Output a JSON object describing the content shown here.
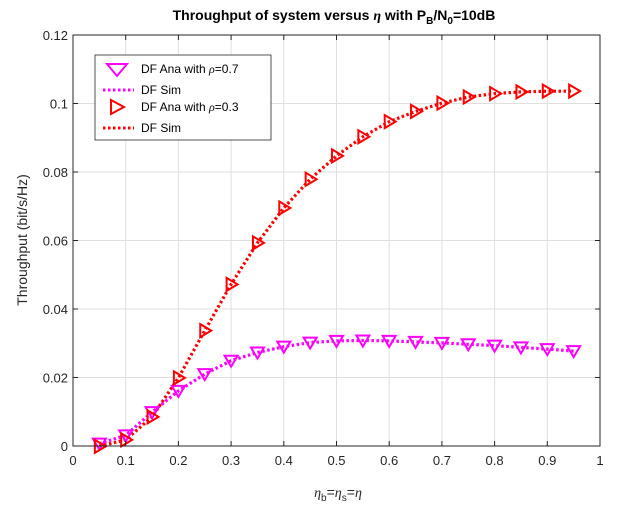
{
  "chart_data": {
    "type": "line",
    "title": {
      "prefix": "Throughput of system versus ",
      "eta": "η",
      "mid": " with P",
      "sub_b": "B",
      "slash": "/N",
      "sub_0": "0",
      "suffix": "=10dB"
    },
    "ylabel": "Throughput (bit/s/Hz)",
    "xlabel": {
      "eta1": "η",
      "sub1": "b",
      "eq1": "=",
      "eta2": "η",
      "sub2": "s",
      "eq2": "=",
      "eta3": "η"
    },
    "xlim": [
      0,
      1
    ],
    "ylim": [
      0,
      0.12
    ],
    "xticks": [
      "0",
      "0.1",
      "0.2",
      "0.3",
      "0.4",
      "0.5",
      "0.6",
      "0.7",
      "0.8",
      "0.9",
      "1"
    ],
    "yticks": [
      "0",
      "0.02",
      "0.04",
      "0.06",
      "0.08",
      "0.1",
      "0.12"
    ],
    "grid": true,
    "legend_position": "top-left",
    "x": [
      0.05,
      0.1,
      0.15,
      0.2,
      0.25,
      0.3,
      0.35,
      0.4,
      0.45,
      0.5,
      0.55,
      0.6,
      0.65,
      0.7,
      0.75,
      0.8,
      0.85,
      0.9,
      0.95
    ],
    "series": [
      {
        "name": "DF Ana with ρ=0.7",
        "legend": {
          "pre": "DF Ana with ",
          "rho": "ρ",
          "post": "=0.7"
        },
        "color": "#ff00ff",
        "marker": "triangle-down",
        "values": [
          0.0007,
          0.0031,
          0.0099,
          0.0161,
          0.021,
          0.0249,
          0.0273,
          0.029,
          0.0302,
          0.0307,
          0.0308,
          0.0307,
          0.0304,
          0.0301,
          0.0297,
          0.0293,
          0.0288,
          0.0283,
          0.0277
        ]
      },
      {
        "name": "DF Sim",
        "legend": {
          "pre": "DF Sim",
          "rho": "",
          "post": ""
        },
        "color": "#ff00ff",
        "marker": "none",
        "values": [
          0.0007,
          0.0031,
          0.0099,
          0.0161,
          0.021,
          0.0249,
          0.0273,
          0.029,
          0.0302,
          0.0307,
          0.0308,
          0.0307,
          0.0304,
          0.0301,
          0.0297,
          0.0293,
          0.0288,
          0.0283,
          0.0277
        ]
      },
      {
        "name": "DF Ana with ρ=0.3",
        "legend": {
          "pre": "DF Ana with ",
          "rho": "ρ",
          "post": "=0.3"
        },
        "color": "#ff0000",
        "marker": "triangle-right",
        "values": [
          -0.0001,
          0.0018,
          0.0085,
          0.0199,
          0.0337,
          0.0472,
          0.0593,
          0.0695,
          0.0779,
          0.0847,
          0.0903,
          0.0947,
          0.0977,
          0.1001,
          0.1019,
          0.1029,
          0.1034,
          0.1036,
          0.1036
        ]
      },
      {
        "name": "DF Sim",
        "legend": {
          "pre": "DF Sim",
          "rho": "",
          "post": ""
        },
        "color": "#ff0000",
        "marker": "none",
        "values": [
          -0.0001,
          0.0018,
          0.0085,
          0.0199,
          0.0337,
          0.0472,
          0.0593,
          0.0695,
          0.0779,
          0.0847,
          0.0903,
          0.0947,
          0.0977,
          0.1001,
          0.1019,
          0.1029,
          0.1034,
          0.1036,
          0.1036
        ]
      }
    ]
  }
}
